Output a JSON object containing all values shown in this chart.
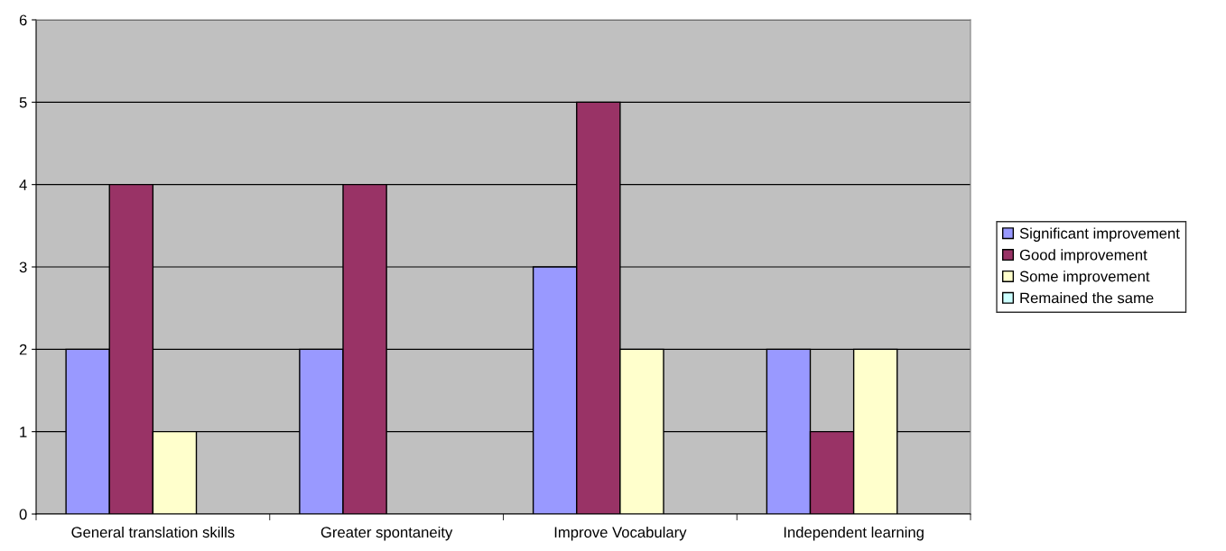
{
  "chart_data": {
    "type": "bar",
    "categories": [
      "General translation skills",
      "Greater spontaneity",
      "Improve Vocabulary",
      "Independent learning"
    ],
    "series": [
      {
        "name": "Significant improvement",
        "color": "#9999ff",
        "values": [
          2,
          2,
          3,
          2
        ]
      },
      {
        "name": "Good improvement",
        "color": "#993366",
        "values": [
          4,
          4,
          5,
          1
        ]
      },
      {
        "name": "Some improvement",
        "color": "#ffffcc",
        "values": [
          1,
          null,
          2,
          2
        ]
      },
      {
        "name": "Remained the same",
        "color": "#ccffff",
        "values": [
          null,
          null,
          null,
          null
        ]
      }
    ],
    "ylim": [
      0,
      6
    ],
    "yticks": [
      0,
      1,
      2,
      3,
      4,
      5,
      6
    ],
    "grid": "y",
    "legend": "right"
  }
}
